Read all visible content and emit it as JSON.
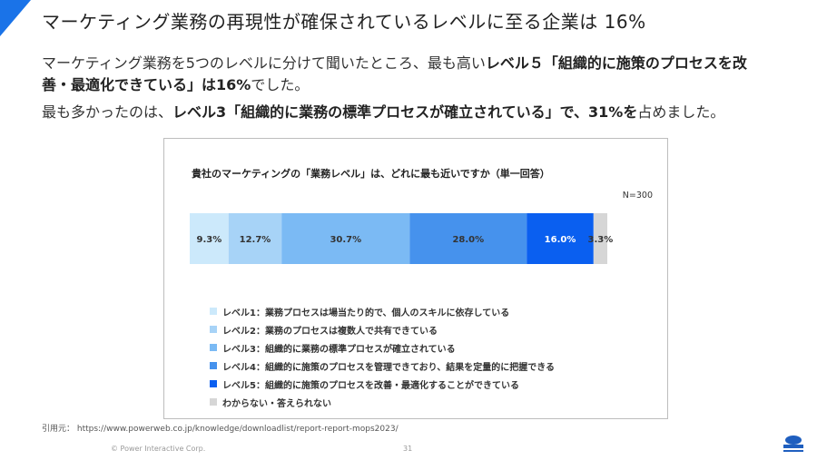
{
  "slide": {
    "title": "マーケティング業務の再現性が確保されているレベルに至る企業は 16%",
    "para1": {
      "text1": "マーケティング業務を5つのレベルに分けて聞いたところ、最も高い",
      "bold1": "レベル５「組織的に施策のプロセスを改善・最適化できている」は16%",
      "text2": "でした。"
    },
    "para2": {
      "text1": "最も多かったのは、",
      "bold1": "レベル3「組織的に業務の標準プロセスが確立されている」で、31%を",
      "text2": "占めました。"
    },
    "source": "引用元： https://www.powerweb.co.jp/knowledge/downloadlist/report-report-mops2023/",
    "copyright": "© Power Interactive Corp.",
    "page_number": "31",
    "accent_color": "#1a73e8"
  },
  "chart_data": {
    "type": "bar",
    "orientation": "horizontal-stacked-100",
    "title": "貴社のマーケティングの「業務レベル」は、どれに最も近いですか（単一回答）",
    "note": "N=300",
    "unit": "%",
    "legend_position": "bottom",
    "series": [
      {
        "name": "レベル1：業務プロセスは場当たり的で、個人のスキルに依存している",
        "value": 9.3,
        "label": "9.3%",
        "color": "#cce9fb"
      },
      {
        "name": "レベル2：業務のプロセスは複数人で共有できている",
        "value": 12.7,
        "label": "12.7%",
        "color": "#a7d3f7"
      },
      {
        "name": "レベル3：組織的に業務の標準プロセスが確立されている",
        "value": 30.7,
        "label": "30.7%",
        "color": "#7bbaf4"
      },
      {
        "name": "レベル4：組織的に施策のプロセスを管理できており、結果を定量的に把握できる",
        "value": 28.0,
        "label": "28.0%",
        "color": "#4692ed"
      },
      {
        "name": "レベル5：組織的に施策のプロセスを改善・最適化することができている",
        "value": 16.0,
        "label": "16.0%",
        "color": "#0a5ff0"
      },
      {
        "name": "わからない・答えられない",
        "value": 3.3,
        "label": "3.3%",
        "color": "#d6d6d6"
      }
    ]
  }
}
